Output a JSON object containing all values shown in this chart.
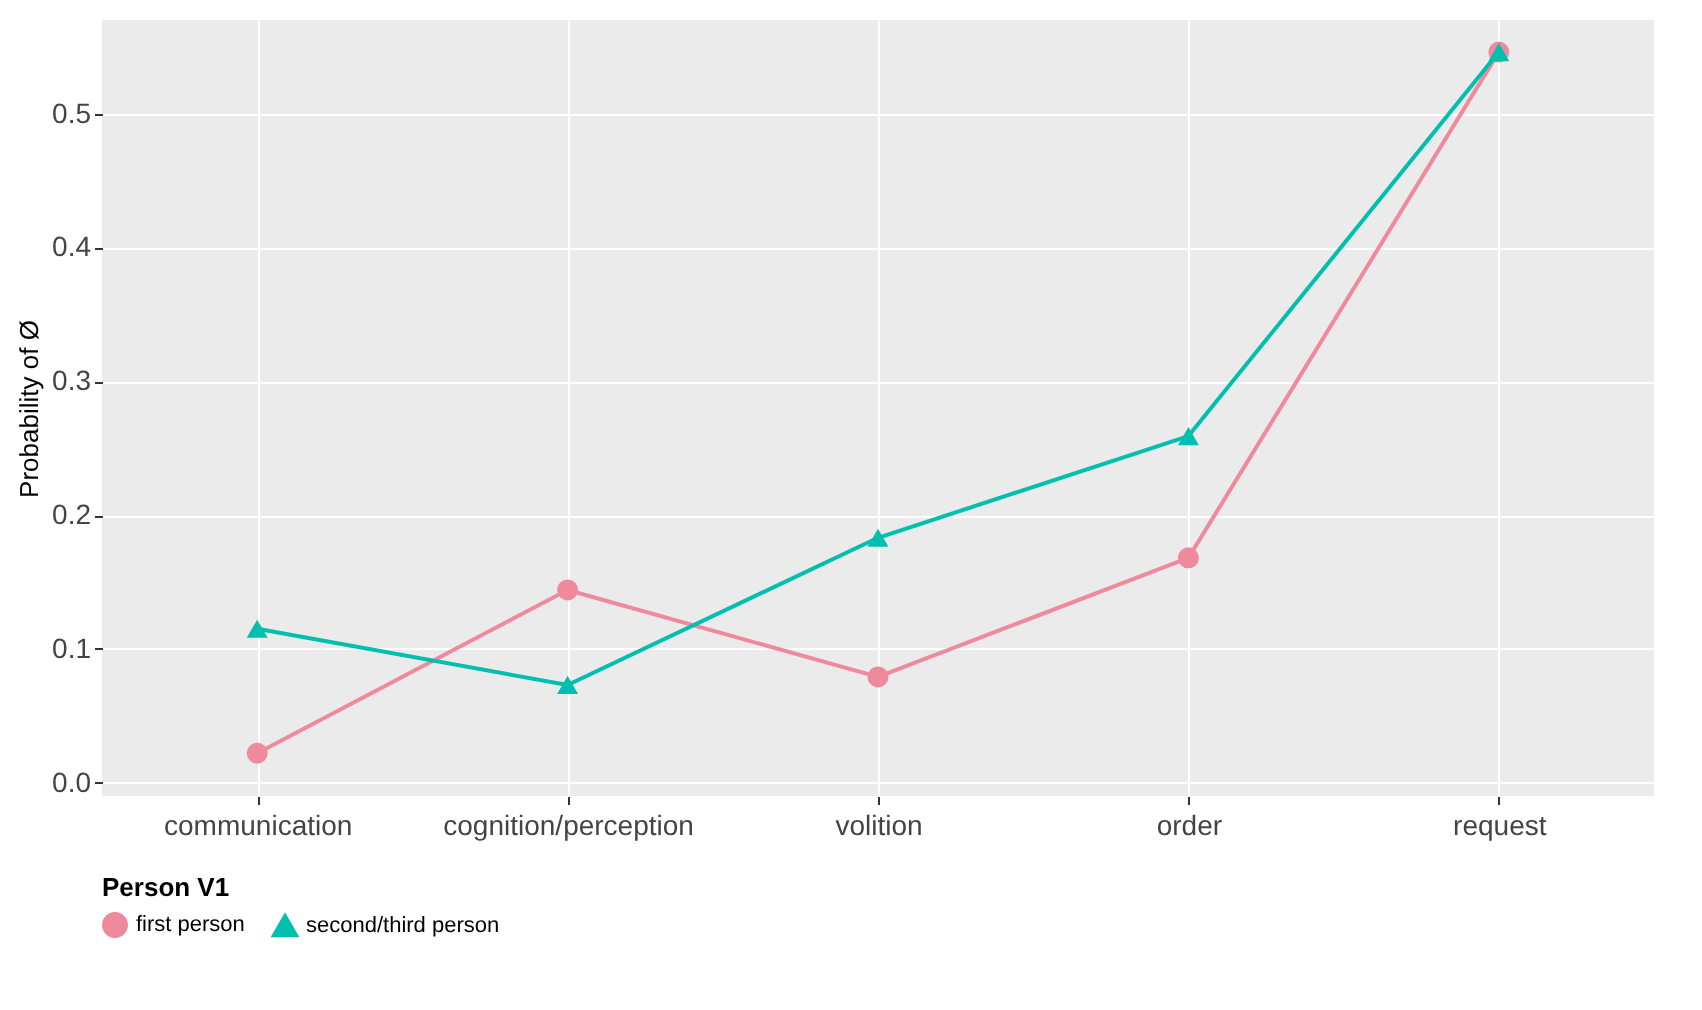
{
  "chart_data": {
    "type": "line",
    "ylabel": "Probability of Ø",
    "legend_title": "Person V1",
    "legend": "bottom",
    "grid": true,
    "categories": [
      "communication",
      "cognition/perception",
      "volition",
      "order",
      "request"
    ],
    "ylim": [
      -0.01,
      0.57
    ],
    "yticks": [
      {
        "value": 0,
        "label": "0.0"
      },
      0.1,
      0.2,
      0.3,
      0.4,
      0.5
    ],
    "series": [
      {
        "name": "first person",
        "color": "#ee8a9b",
        "marker": "circle",
        "values": [
          0.022,
          0.144,
          0.079,
          0.168,
          0.546
        ]
      },
      {
        "name": "second/third person",
        "color": "#00bfae",
        "marker": "triangle",
        "values": [
          0.115,
          0.073,
          0.183,
          0.259,
          0.546
        ]
      }
    ]
  }
}
